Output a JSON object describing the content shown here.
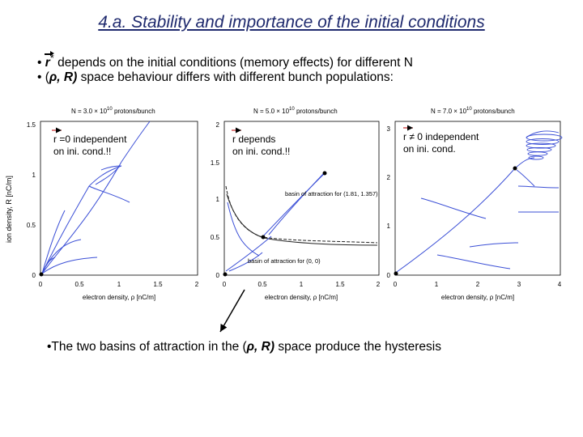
{
  "slide": {
    "title": "4.a. Stability and importance of the initial conditions",
    "bullet1_symbol": "r",
    "bullet1_star": "*",
    "bullet1_text": " depends on the initial conditions (memory effects) for different N",
    "bullet2_prefix": "• (",
    "bullet2_symbol": "ρ, R)",
    "bullet2_text": " space behaviour differs with different bunch populations:",
    "bullet3_prefix": "•The two basins of attraction in the (",
    "bullet3_symbol": "ρ, R)",
    "bullet3_text": " space produce the hysteresis"
  },
  "panels": [
    {
      "heading": "N = 3.0 × 10",
      "heading_exp": "10",
      "heading_suffix": " protons/bunch",
      "annotation_line1": "r =0 independent",
      "annotation_line2": "on ini. cond.!!",
      "x_ticks": [
        "0",
        "0.5",
        "1",
        "1.5",
        "2"
      ],
      "y_ticks": [
        "0",
        "0.5",
        "1",
        "1.5"
      ],
      "xlabel": "electron density, ρ [nC/m]",
      "ylabel": "ion density, R [nC/m]"
    },
    {
      "heading": "N = 5.0 × 10",
      "heading_exp": "10",
      "heading_suffix": " protons/bunch",
      "annotation_line1": "r  depends",
      "annotation_line2": "on ini. cond.!!",
      "basin_label_1": "basin of attraction for (1.81, 1.357)",
      "basin_label_2": "basin of attraction for (0, 0)",
      "x_ticks": [
        "0",
        "0.5",
        "1",
        "1.5",
        "2"
      ],
      "y_ticks": [
        "0",
        "0.5",
        "1",
        "1.5",
        "2"
      ],
      "xlabel": "electron density, ρ [nC/m]"
    },
    {
      "heading": "N = 7.0 × 10",
      "heading_exp": "10",
      "heading_suffix": " protons/bunch",
      "annotation_line1": "r ≠ 0 independent",
      "annotation_line2": "on ini. cond.",
      "x_ticks": [
        "0",
        "1",
        "2",
        "3",
        "4"
      ],
      "y_ticks": [
        "0",
        "1",
        "2",
        "3"
      ],
      "xlabel": "electron density, ρ [nC/m]"
    }
  ],
  "colors": {
    "title": "#1f2a6e",
    "trajectory": "#3b4fd6",
    "nullcline": "#222222"
  }
}
